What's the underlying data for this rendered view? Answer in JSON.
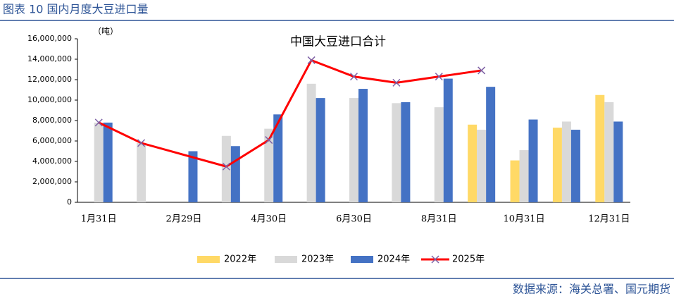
{
  "header": {
    "title": "图表 10 国内月度大豆进口量"
  },
  "chart_data": {
    "type": "bar",
    "title": "中国大豆进口合计",
    "y_unit_label": "（吨）",
    "categories": [
      "1月31日",
      null,
      "2月29日",
      null,
      "4月30日",
      null,
      "6月30日",
      null,
      "8月31日",
      null,
      "10月31日",
      null,
      "12月31日"
    ],
    "ylim": [
      0,
      16000000
    ],
    "yticks": [
      0,
      {
        "value": 2000000,
        "label": "2,000,000"
      },
      {
        "value": 4000000,
        "label": "4,000,000"
      },
      {
        "value": 6000000,
        "label": "6,000,000"
      },
      {
        "value": 8000000,
        "label": "8,000,000"
      },
      {
        "value": 10000000,
        "label": "10,000,000"
      },
      {
        "value": 12000000,
        "label": "12,000,000"
      },
      {
        "value": 14000000,
        "label": "14,000,000"
      },
      {
        "value": 16000000,
        "label": "16,000,000"
      }
    ],
    "grid": false,
    "legend": "bottom",
    "series": [
      {
        "name": "2022年",
        "type": "bar",
        "color": "#ffd966",
        "values": [
          null,
          null,
          null,
          null,
          null,
          null,
          null,
          null,
          null,
          7600000,
          4100000,
          7300000,
          10500000
        ]
      },
      {
        "name": "2023年",
        "type": "bar",
        "color": "#d9d9d9",
        "values": [
          7800000,
          5800000,
          null,
          6500000,
          7200000,
          11600000,
          10200000,
          9700000,
          9300000,
          7100000,
          5100000,
          7900000,
          9800000
        ]
      },
      {
        "name": "2024年",
        "type": "bar",
        "color": "#4472c4",
        "values": [
          7800000,
          null,
          5000000,
          5500000,
          8600000,
          10200000,
          11100000,
          9800000,
          12100000,
          11300000,
          8100000,
          7100000,
          7900000
        ]
      },
      {
        "name": "2025年",
        "type": "line",
        "color": "#ff0000",
        "marker_color": "#7e62a6",
        "span_gaps": true,
        "values": [
          7800000,
          5800000,
          null,
          3500000,
          6100000,
          13900000,
          12300000,
          11700000,
          12300000,
          12900000,
          null,
          null,
          null
        ]
      }
    ]
  },
  "footer": {
    "source": "数据来源：海关总署、国元期货"
  }
}
